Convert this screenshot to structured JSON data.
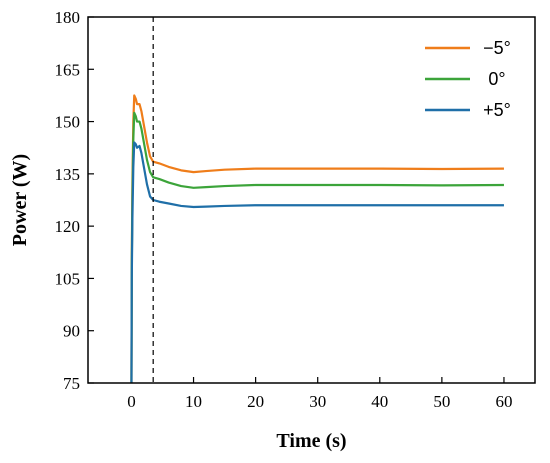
{
  "chart_data": {
    "type": "line",
    "title": "",
    "xlabel": "Time (s)",
    "ylabel": "Power (W)",
    "xlim": [
      -7,
      65
    ],
    "ylim": [
      75,
      180
    ],
    "xticks": [
      0,
      10,
      20,
      30,
      40,
      50,
      60
    ],
    "yticks": [
      75,
      90,
      105,
      120,
      135,
      150,
      165,
      180
    ],
    "grid": false,
    "legend": "top-right",
    "reference_line": {
      "x": 3.5,
      "style": "dashed"
    },
    "series": [
      {
        "name": "−5°",
        "color": "#ef7d1a",
        "points": [
          [
            0,
            75
          ],
          [
            0.05,
            110
          ],
          [
            0.15,
            132
          ],
          [
            0.3,
            150
          ],
          [
            0.45,
            157.5
          ],
          [
            0.7,
            156.5
          ],
          [
            0.9,
            155
          ],
          [
            1.3,
            155
          ],
          [
            1.6,
            153
          ],
          [
            2,
            149
          ],
          [
            2.5,
            144
          ],
          [
            3,
            140
          ],
          [
            3.5,
            138.5
          ],
          [
            4.5,
            138
          ],
          [
            6,
            137
          ],
          [
            8,
            136
          ],
          [
            10,
            135.5
          ],
          [
            12,
            135.8
          ],
          [
            15,
            136.2
          ],
          [
            20,
            136.5
          ],
          [
            30,
            136.5
          ],
          [
            40,
            136.5
          ],
          [
            50,
            136.4
          ],
          [
            60,
            136.5
          ]
        ]
      },
      {
        "name": "0°",
        "color": "#3ca43a",
        "points": [
          [
            0,
            75
          ],
          [
            0.05,
            108
          ],
          [
            0.15,
            128
          ],
          [
            0.3,
            145
          ],
          [
            0.45,
            152.5
          ],
          [
            0.7,
            151.5
          ],
          [
            0.9,
            150
          ],
          [
            1.3,
            150
          ],
          [
            1.6,
            148
          ],
          [
            2,
            144
          ],
          [
            2.5,
            139
          ],
          [
            3,
            135.5
          ],
          [
            3.5,
            134
          ],
          [
            4.5,
            133.5
          ],
          [
            6,
            132.5
          ],
          [
            8,
            131.5
          ],
          [
            10,
            131
          ],
          [
            12,
            131.2
          ],
          [
            15,
            131.5
          ],
          [
            20,
            131.8
          ],
          [
            30,
            131.8
          ],
          [
            40,
            131.8
          ],
          [
            50,
            131.7
          ],
          [
            60,
            131.8
          ]
        ]
      },
      {
        "name": "+5°",
        "color": "#1f6fa8",
        "points": [
          [
            0,
            75
          ],
          [
            0.05,
            105
          ],
          [
            0.15,
            122
          ],
          [
            0.3,
            137
          ],
          [
            0.45,
            144
          ],
          [
            0.7,
            143.5
          ],
          [
            0.9,
            142.5
          ],
          [
            1.3,
            143
          ],
          [
            1.6,
            141
          ],
          [
            2,
            137
          ],
          [
            2.5,
            132
          ],
          [
            3,
            128.5
          ],
          [
            3.5,
            127.5
          ],
          [
            4.5,
            127
          ],
          [
            6,
            126.5
          ],
          [
            8,
            125.8
          ],
          [
            10,
            125.5
          ],
          [
            12,
            125.6
          ],
          [
            15,
            125.8
          ],
          [
            20,
            126
          ],
          [
            30,
            126
          ],
          [
            40,
            126
          ],
          [
            50,
            126
          ],
          [
            60,
            126
          ]
        ]
      }
    ]
  }
}
